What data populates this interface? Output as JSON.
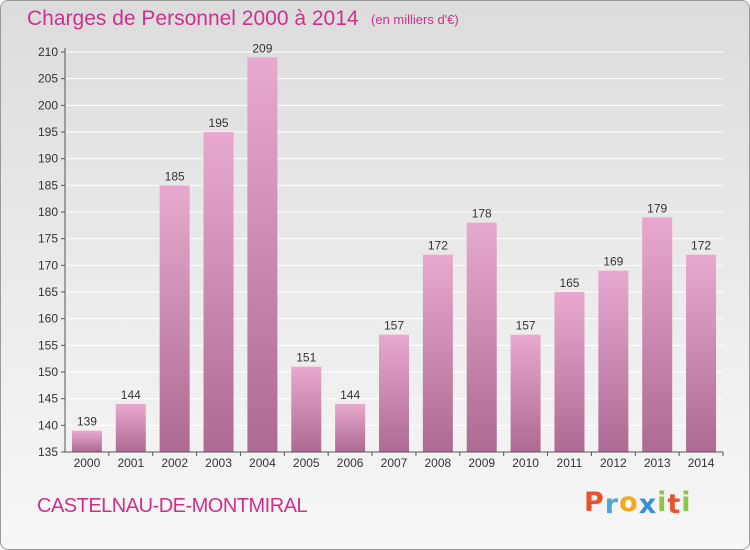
{
  "header": {
    "title": "Charges de Personnel 2000 à 2014",
    "unit_note": "(en milliers d'€)"
  },
  "footer": {
    "commune": "CASTELNAU-DE-MONTMIRAL",
    "brand_letters": [
      "P",
      "r",
      "o",
      "x",
      "i",
      "t",
      "i"
    ],
    "brand_colors": [
      "#e8532d",
      "#4aa8d8",
      "#f4a81d",
      "#3b8ed0",
      "#8cc63f",
      "#e8532d",
      "#8cc63f"
    ]
  },
  "chart_data": {
    "type": "bar",
    "title": "Charges de Personnel 2000 à 2014",
    "subtitle": "(en milliers d'€)",
    "xlabel": "",
    "ylabel": "",
    "categories": [
      "2000",
      "2001",
      "2002",
      "2003",
      "2004",
      "2005",
      "2006",
      "2007",
      "2008",
      "2009",
      "2010",
      "2011",
      "2012",
      "2013",
      "2014"
    ],
    "values": [
      139,
      144,
      185,
      195,
      209,
      151,
      144,
      157,
      172,
      178,
      157,
      165,
      169,
      179,
      172
    ],
    "value_labels": [
      "139",
      "144",
      "185",
      "195",
      "209",
      "151",
      "144",
      "157",
      "172",
      "178",
      "157",
      "165",
      "169",
      "179",
      "172"
    ],
    "ylim": [
      135,
      210
    ],
    "yticks": [
      "135",
      "140",
      "145",
      "150",
      "155",
      "160",
      "165",
      "170",
      "175",
      "180",
      "185",
      "190",
      "195",
      "200",
      "205",
      "210"
    ],
    "grid": true,
    "legend": "none",
    "colors": {
      "bar_top": "#e8a9cf",
      "bar_bottom": "#ad6a92",
      "grid": "#ffffff",
      "axis": "#555555"
    }
  }
}
